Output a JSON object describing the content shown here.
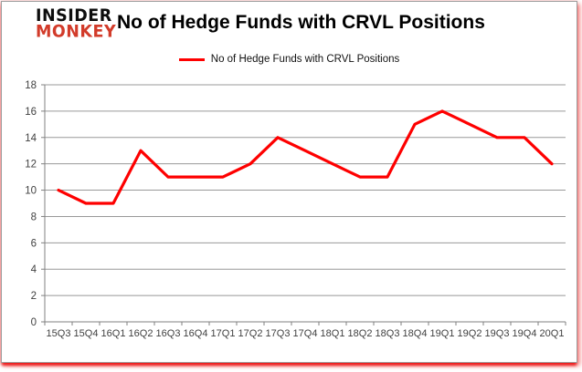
{
  "header": {
    "logo_line1": "INSIDER",
    "logo_line2": "MONKEY",
    "title": "No of Hedge Funds with CRVL Positions"
  },
  "colors": {
    "logo_red": "#d23b2a",
    "line_red": "#fe0000",
    "gridline": "#999999",
    "axis": "#808080",
    "tick_text": "#404040"
  },
  "chart_data": {
    "type": "line",
    "title": "No of Hedge Funds with CRVL Positions",
    "legend": "No of Hedge Funds with CRVL Positions",
    "legend_position": "top-center",
    "categories": [
      "15Q3",
      "15Q4",
      "16Q1",
      "16Q2",
      "16Q3",
      "16Q4",
      "17Q1",
      "17Q2",
      "17Q3",
      "17Q4",
      "18Q1",
      "18Q2",
      "18Q3",
      "18Q4",
      "19Q1",
      "19Q2",
      "19Q3",
      "19Q4",
      "20Q1"
    ],
    "values": [
      10,
      9,
      9,
      13,
      11,
      11,
      11,
      12,
      14,
      13,
      12,
      11,
      11,
      15,
      16,
      15,
      14,
      14,
      12
    ],
    "xlabel": "",
    "ylabel": "",
    "ylim": [
      0,
      18
    ],
    "ytick_step": 2,
    "grid": true
  }
}
